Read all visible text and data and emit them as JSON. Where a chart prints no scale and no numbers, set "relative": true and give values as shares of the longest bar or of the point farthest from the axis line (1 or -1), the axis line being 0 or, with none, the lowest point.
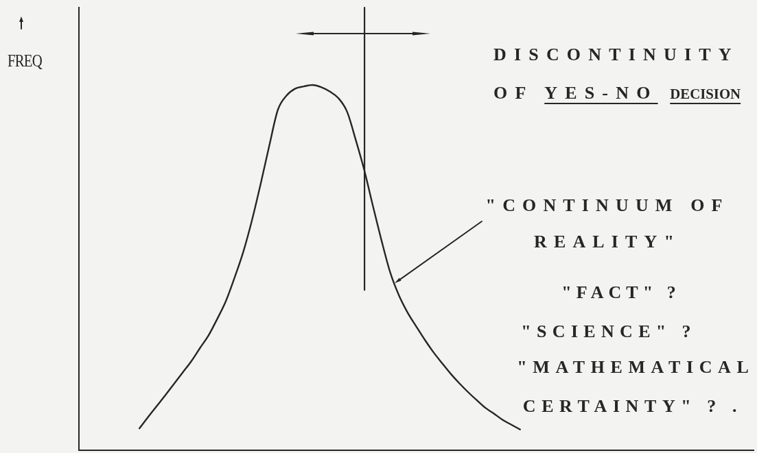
{
  "chart_data": {
    "type": "line",
    "ylabel": "FREQ",
    "categories": [
      null,
      null,
      null,
      null,
      null,
      null,
      null,
      null,
      null,
      null,
      null,
      null,
      null,
      null,
      null,
      null,
      null,
      null,
      null,
      null,
      null,
      null,
      null,
      null,
      null,
      null,
      null,
      null,
      null,
      null,
      null,
      null,
      null,
      null,
      null,
      null,
      null,
      null,
      null,
      null,
      null,
      null,
      null,
      null,
      null,
      null,
      null,
      null,
      null,
      null,
      null,
      null,
      null,
      null,
      null,
      null,
      null,
      null,
      null,
      null,
      null,
      null,
      null,
      null,
      null,
      null,
      null,
      null,
      null,
      null,
      null,
      null,
      null,
      null,
      null,
      null,
      null,
      null,
      null
    ],
    "values": [
      null,
      null,
      null,
      null,
      null,
      null,
      null,
      0.06,
      0.091,
      0.121,
      0.151,
      0.182,
      0.213,
      0.244,
      0.28,
      0.315,
      0.36,
      0.409,
      0.473,
      0.543,
      0.629,
      0.728,
      0.833,
      0.932,
      0.971,
      0.99,
      0.996,
      1.0,
      0.994,
      0.982,
      0.964,
      0.927,
      0.85,
      0.766,
      0.668,
      0.573,
      0.486,
      0.424,
      0.377,
      0.339,
      0.302,
      0.268,
      0.238,
      0.209,
      0.183,
      0.159,
      0.137,
      0.116,
      0.1,
      0.083,
      0.07,
      0.057,
      null,
      null,
      null,
      null,
      null,
      null,
      null,
      null,
      null,
      null,
      null,
      null,
      null,
      null,
      null,
      null,
      null,
      null,
      null,
      null,
      null,
      null,
      null,
      null,
      null,
      null,
      null
    ],
    "color": "#262626",
    "relative": true,
    "marker": "none",
    "annotations": [
      "DISCONTINUITY OF YES-NO DECISION",
      "\"CONTINUUM OF REALITY\"",
      "\"FACT\" ?",
      "\"SCIENCE\" ?",
      "\"MATHEMATICAL CERTAINTY\" ? ."
    ]
  }
}
